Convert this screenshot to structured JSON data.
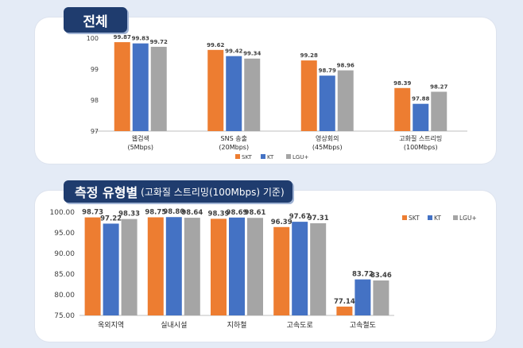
{
  "header": {
    "overall_title": "전체",
    "by_type_title": "측정 유형별",
    "by_type_subtitle": "(고화질 스트리밍(100Mbps) 기준)"
  },
  "chart_data": [
    {
      "type": "bar",
      "title": "전체",
      "categories": [
        [
          "웹검색",
          "(5Mbps)"
        ],
        [
          "SNS 송출",
          "(20Mbps)"
        ],
        [
          "영상회의",
          "(45Mbps)"
        ],
        [
          "고화질 스트리밍",
          "(100Mbps)"
        ]
      ],
      "series": [
        {
          "name": "SKT",
          "values": [
            99.87,
            99.62,
            99.28,
            98.39
          ],
          "labels": [
            "99.87",
            "99.62",
            "99.28",
            "98.39"
          ]
        },
        {
          "name": "KT",
          "values": [
            99.83,
            99.42,
            98.79,
            97.88
          ],
          "labels": [
            "99.83",
            "99.42",
            "98.79",
            "97.88"
          ]
        },
        {
          "name": "LGU+",
          "values": [
            99.72,
            99.34,
            98.96,
            98.27
          ],
          "labels": [
            "99.72",
            "99.34",
            "98.96",
            "98.27"
          ]
        }
      ],
      "ylim": [
        97,
        100
      ],
      "yticks": [
        "97",
        "98",
        "99",
        "100"
      ],
      "legend_position": "bottom",
      "grid": false
    },
    {
      "type": "bar",
      "title": "측정 유형별 (고화질 스트리밍(100Mbps) 기준)",
      "categories": [
        [
          "옥외지역"
        ],
        [
          "실내시설"
        ],
        [
          "지하철"
        ],
        [
          "고속도로"
        ],
        [
          "고속철도"
        ]
      ],
      "series": [
        {
          "name": "SKT",
          "values": [
            98.73,
            98.75,
            98.39,
            96.39,
            77.14
          ],
          "labels": [
            "98.73",
            "98.75",
            "98.39",
            "96.39",
            "77.14"
          ]
        },
        {
          "name": "KT",
          "values": [
            97.22,
            98.8,
            98.69,
            97.67,
            83.72
          ],
          "labels": [
            "97.22",
            "98.80",
            "98.69",
            "97.67",
            "83.72"
          ]
        },
        {
          "name": "LGU+",
          "values": [
            98.33,
            98.64,
            98.61,
            97.31,
            83.46
          ],
          "labels": [
            "98.33",
            "98.64",
            "98.61",
            "97.31",
            "83.46"
          ]
        }
      ],
      "ylim": [
        75,
        100
      ],
      "yticks": [
        "75.00",
        "80.00",
        "85.00",
        "90.00",
        "95.00",
        "100.00"
      ],
      "legend_position": "right",
      "grid": false
    }
  ],
  "colors": {
    "SKT": "#ed7d31",
    "KT": "#4472c4",
    "LGU+": "#a5a5a5"
  }
}
